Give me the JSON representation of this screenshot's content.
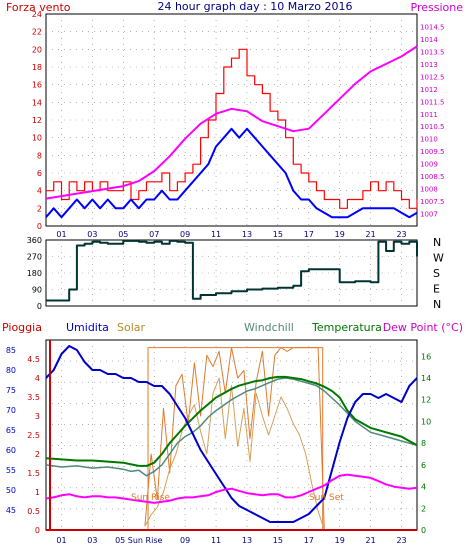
{
  "colors": {
    "wind": "#ff0000",
    "wind_avg": "#0000ff",
    "pressure": "#ff00ff",
    "direction": "#003333",
    "humidity": "#0000cc",
    "solar": "#e07a2e",
    "windchill": "#4f8a7a",
    "temperature": "#007700",
    "dewpoint": "#ff00ff",
    "rain": "#cc0000",
    "grid": "#888888"
  },
  "chart_data": [
    {
      "type": "line",
      "title": "24 hour graph day : 10 Marzo 2016",
      "left_label": "Forza vento",
      "right_label": "Pressione",
      "x_ticks": [
        "01",
        "03",
        "05",
        "07",
        "09",
        "11",
        "13",
        "15",
        "17",
        "19",
        "21",
        "23"
      ],
      "y_left": {
        "min": 0,
        "max": 24,
        "ticks": [
          "0",
          "2",
          "4",
          "6",
          "8",
          "10",
          "12",
          "14",
          "16",
          "18",
          "20",
          "22",
          "24"
        ]
      },
      "y_right": {
        "min": 1006.5,
        "max": 1015,
        "ticks": [
          "1007",
          "1007.5",
          "1008",
          "1008.5",
          "1009",
          "1009.5",
          "1010",
          "1010.5",
          "1011",
          "1011.5",
          "1012",
          "1012.5",
          "1013",
          "1013.5",
          "1014",
          "1014.5"
        ]
      },
      "series": [
        {
          "key": "gust",
          "x": [
            0,
            0.5,
            1,
            1.5,
            2,
            2.5,
            3,
            3.5,
            4,
            4.5,
            5,
            5.5,
            6,
            6.5,
            7,
            7.5,
            8,
            8.5,
            9,
            9.5,
            10,
            10.5,
            11,
            11.5,
            12,
            12.5,
            13,
            13.5,
            14,
            14.5,
            15,
            15.5,
            16,
            16.5,
            17,
            17.5,
            18,
            18.5,
            19,
            19.5,
            20,
            20.5,
            21,
            21.5,
            22,
            22.5,
            23,
            23.5,
            24
          ],
          "values": [
            4,
            5,
            3,
            5,
            4,
            5,
            4,
            5,
            4,
            4,
            5,
            3,
            4,
            5,
            5,
            6,
            4,
            5,
            6,
            7,
            10,
            12,
            15,
            18,
            19,
            20,
            17,
            16,
            15,
            13,
            12,
            10,
            7,
            6,
            5,
            4,
            3,
            3,
            2,
            3,
            3,
            4,
            5,
            4,
            5,
            4,
            3,
            2,
            3
          ]
        },
        {
          "key": "speed",
          "x": [
            0,
            0.5,
            1,
            1.5,
            2,
            2.5,
            3,
            3.5,
            4,
            4.5,
            5,
            5.5,
            6,
            6.5,
            7,
            7.5,
            8,
            8.5,
            9,
            9.5,
            10,
            10.5,
            11,
            11.5,
            12,
            12.5,
            13,
            13.5,
            14,
            14.5,
            15,
            15.5,
            16,
            16.5,
            17,
            17.5,
            18,
            18.5,
            19,
            19.5,
            20,
            20.5,
            21,
            21.5,
            22,
            22.5,
            23,
            23.5,
            24
          ],
          "values": [
            1,
            2,
            1,
            2,
            3,
            2,
            3,
            2,
            3,
            2,
            2,
            3,
            2,
            3,
            3,
            4,
            3,
            3,
            4,
            5,
            6,
            7,
            9,
            10,
            11,
            10,
            11,
            10,
            9,
            8,
            7,
            6,
            4,
            3,
            3,
            2,
            1.5,
            1,
            1,
            1,
            1.5,
            2,
            2,
            2,
            2,
            2,
            1.5,
            1,
            1.5
          ]
        },
        {
          "key": "pressure",
          "x": [
            0,
            1,
            2,
            3,
            4,
            5,
            6,
            7,
            8,
            9,
            10,
            11,
            12,
            13,
            14,
            15,
            16,
            17,
            18,
            19,
            20,
            21,
            22,
            23,
            24
          ],
          "values": [
            1007.6,
            1007.7,
            1007.8,
            1007.9,
            1008.0,
            1008.1,
            1008.3,
            1008.7,
            1009.3,
            1010.0,
            1010.6,
            1011.0,
            1011.2,
            1011.1,
            1010.7,
            1010.5,
            1010.3,
            1010.4,
            1011.0,
            1011.6,
            1012.2,
            1012.7,
            1013.0,
            1013.3,
            1013.7
          ]
        }
      ]
    },
    {
      "type": "line",
      "y_ticks": [
        "0",
        "90",
        "180",
        "270",
        "360"
      ],
      "right_labels": [
        "N",
        "W",
        "S",
        "E",
        "N"
      ],
      "series": [
        {
          "key": "direction",
          "x": [
            0,
            1.5,
            2,
            2.5,
            3,
            3.5,
            4,
            5,
            6,
            6.5,
            7,
            7.5,
            8,
            8.5,
            9,
            9.5,
            10,
            11,
            12,
            13,
            14,
            15,
            16,
            16.5,
            17,
            18,
            19,
            20,
            21,
            21.5,
            22,
            22.5,
            23,
            23.5,
            24
          ],
          "values": [
            30,
            90,
            330,
            340,
            350,
            345,
            340,
            355,
            350,
            345,
            350,
            340,
            355,
            350,
            345,
            40,
            60,
            70,
            80,
            90,
            95,
            100,
            110,
            190,
            200,
            200,
            130,
            135,
            130,
            350,
            300,
            350,
            340,
            350,
            270
          ]
        }
      ]
    },
    {
      "type": "line",
      "top_labels": {
        "rain": "Pioggia",
        "humidity": "Umidita",
        "solar": "Solar",
        "windchill": "Windchill",
        "temperature": "Temperatura",
        "dewpoint": "Dew Point (°C)"
      },
      "x_ticks": [
        "01",
        "03",
        "05 Sun Rise",
        "09",
        "11",
        "13",
        "15",
        "17",
        "19",
        "21",
        "23"
      ],
      "sunrise_label": "Sun Rise",
      "sunset_label": "Sun Set",
      "sunrise_hour": 6.6,
      "sunset_hour": 17.9,
      "y_rain": {
        "min": 0,
        "max": 5,
        "ticks": [
          "0",
          "0.5",
          "1",
          "1.5",
          "2",
          "2.5",
          "3",
          "3.5",
          "4",
          "4.5"
        ]
      },
      "y_humidity": {
        "min": 40,
        "max": 87.5,
        "ticks": [
          "45",
          "50",
          "55",
          "60",
          "65",
          "70",
          "75",
          "80",
          "85"
        ]
      },
      "y_temp": {
        "min": 0,
        "max": 17.5,
        "ticks": [
          "0",
          "2",
          "4",
          "6",
          "8",
          "10",
          "12",
          "14",
          "16"
        ]
      },
      "series": [
        {
          "key": "humidity",
          "x": [
            0,
            0.5,
            1,
            1.5,
            2,
            2.5,
            3,
            3.5,
            4,
            4.5,
            5,
            5.5,
            6,
            6.5,
            7,
            7.5,
            8,
            8.5,
            9,
            9.5,
            10,
            10.5,
            11,
            11.5,
            12,
            12.5,
            13,
            13.5,
            14,
            14.5,
            15,
            15.5,
            16,
            16.5,
            17,
            17.5,
            18,
            18.5,
            19,
            19.5,
            20,
            20.5,
            21,
            21.5,
            22,
            22.5,
            23,
            23.5,
            24
          ],
          "values": [
            78,
            80,
            84,
            86,
            85,
            82,
            80,
            80,
            79,
            79,
            78,
            78,
            77,
            77,
            76,
            76,
            74,
            71,
            68,
            64,
            60,
            57,
            54,
            51,
            48,
            46,
            45,
            44,
            43,
            42,
            42,
            42,
            42,
            43,
            44,
            46,
            48,
            55,
            62,
            68,
            72,
            74,
            74,
            73,
            74,
            73,
            72,
            76,
            78
          ]
        },
        {
          "key": "solar_max",
          "x": [
            6.4,
            6.8,
            7.2,
            7.6,
            8,
            8.4,
            8.8,
            9.2,
            9.6,
            10,
            10.4,
            10.8,
            11.2,
            11.6,
            12,
            12.4,
            12.8,
            13.2,
            13.6,
            14,
            14.4,
            14.8,
            15.2,
            15.6,
            16,
            16.4,
            16.8,
            17.2,
            17.6,
            18
          ],
          "values": [
            0.1,
            2.0,
            0.8,
            3.2,
            1.5,
            3.8,
            4.1,
            2.8,
            4.4,
            3.0,
            4.6,
            4.3,
            4.7,
            3.6,
            4.8,
            4.0,
            4.2,
            2.4,
            3.9,
            4.7,
            3.0,
            4.6,
            4.8,
            4.7,
            4.8,
            4.8,
            4.8,
            4.8,
            4.8,
            0.0
          ]
        },
        {
          "key": "solar",
          "x": [
            6.4,
            6.8,
            7.2,
            7.6,
            8,
            8.4,
            8.8,
            9.2,
            9.6,
            10,
            10.4,
            10.8,
            11.2,
            11.6,
            12,
            12.4,
            12.8,
            13.2,
            13.6,
            14,
            14.4,
            14.8,
            15.2,
            15.6,
            16,
            16.4,
            16.8,
            17.2,
            17.6,
            18
          ],
          "values": [
            0.1,
            0.4,
            0.6,
            1.0,
            1.6,
            2.0,
            2.6,
            3.0,
            3.3,
            2.6,
            2.0,
            3.6,
            4.0,
            2.4,
            3.8,
            2.2,
            3.2,
            1.8,
            3.6,
            3.0,
            2.5,
            3.0,
            3.5,
            3.2,
            2.8,
            2.5,
            2.0,
            1.2,
            0.5,
            0.0
          ]
        },
        {
          "key": "windchill",
          "x": [
            0,
            1,
            2,
            3,
            4,
            5,
            5.5,
            6,
            6.5,
            7,
            7.5,
            8,
            8.5,
            9,
            9.5,
            10,
            10.5,
            11,
            11.5,
            12,
            12.5,
            13,
            13.5,
            14,
            14.5,
            15,
            15.5,
            16,
            16.5,
            17,
            17.5,
            18,
            19,
            20,
            21,
            22,
            23,
            24
          ],
          "values": [
            6.0,
            5.8,
            5.9,
            5.7,
            5.8,
            5.6,
            5.4,
            5.5,
            5.0,
            5.4,
            6.0,
            7.0,
            8.0,
            8.6,
            9.0,
            9.6,
            10.4,
            11.0,
            11.5,
            12.0,
            12.4,
            12.8,
            13.0,
            13.3,
            13.6,
            13.9,
            14.0,
            13.9,
            13.7,
            13.5,
            13.3,
            12.8,
            11.5,
            10.0,
            9.0,
            8.6,
            8.2,
            7.8
          ]
        },
        {
          "key": "temperature",
          "x": [
            0,
            1,
            2,
            3,
            4,
            5,
            6,
            6.5,
            7,
            7.5,
            8,
            8.5,
            9,
            9.5,
            10,
            10.5,
            11,
            11.5,
            12,
            12.5,
            13,
            13.5,
            14,
            14.5,
            15,
            15.5,
            16,
            16.5,
            17,
            17.5,
            18,
            18.5,
            19,
            19.5,
            20,
            21,
            22,
            23,
            23.5,
            24
          ],
          "values": [
            6.6,
            6.5,
            6.4,
            6.4,
            6.3,
            6.2,
            5.9,
            5.9,
            6.2,
            7.0,
            8.0,
            8.8,
            9.6,
            10.3,
            11.0,
            11.6,
            12.2,
            12.6,
            13.0,
            13.3,
            13.5,
            13.7,
            13.8,
            14.0,
            14.1,
            14.1,
            14.0,
            13.9,
            13.7,
            13.5,
            13.2,
            12.8,
            12.2,
            11.0,
            10.2,
            9.4,
            9.0,
            8.6,
            8.2,
            7.8
          ]
        },
        {
          "key": "dewpoint",
          "x": [
            0,
            0.5,
            1,
            1.5,
            2,
            2.5,
            3,
            3.5,
            4,
            4.5,
            5,
            5.5,
            6,
            6.5,
            7,
            7.5,
            8,
            8.5,
            9,
            9.5,
            10,
            10.5,
            11,
            11.5,
            12,
            12.5,
            13,
            13.5,
            14,
            14.5,
            15,
            15.5,
            16,
            16.5,
            17,
            17.5,
            18,
            18.5,
            19,
            19.5,
            20,
            20.5,
            21,
            21.5,
            22,
            22.5,
            23,
            23.5,
            24
          ],
          "values": [
            2.9,
            3.0,
            3.2,
            3.3,
            3.1,
            3.0,
            3.1,
            3.1,
            3.0,
            3.0,
            2.9,
            2.8,
            2.7,
            2.6,
            2.5,
            2.6,
            2.7,
            2.9,
            3.0,
            3.0,
            3.1,
            3.2,
            3.5,
            3.7,
            3.8,
            3.6,
            3.4,
            3.3,
            3.2,
            3.3,
            3.3,
            3.0,
            3.0,
            3.2,
            3.5,
            3.8,
            4.1,
            4.6,
            5.0,
            5.1,
            5.0,
            4.9,
            4.8,
            4.5,
            4.2,
            4.0,
            3.9,
            3.8,
            3.9
          ]
        },
        {
          "key": "rain",
          "x": [
            0,
            24
          ],
          "values": [
            0,
            0
          ]
        }
      ]
    }
  ]
}
